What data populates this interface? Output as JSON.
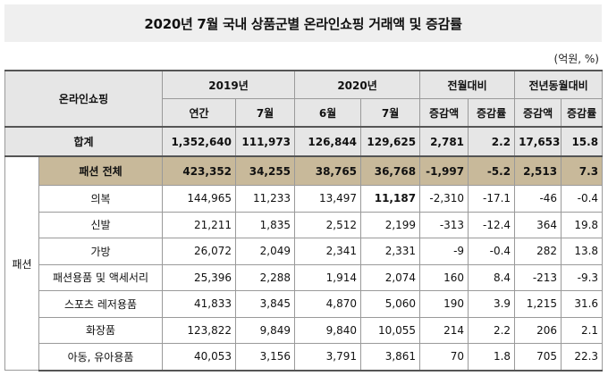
{
  "title": "2020년 7월 국내 상품군별 온라인쇼핑 거래액 및 증감률",
  "unit": "(억원, %)",
  "header": {
    "corner": "온라인쇼핑",
    "groups": [
      "2019년",
      "2020년",
      "전월대비",
      "전년동월대비"
    ],
    "subs": [
      "연간",
      "7월",
      "6월",
      "7월",
      "증감액",
      "증감률",
      "증감액",
      "증감률"
    ]
  },
  "total": {
    "label": "합계",
    "values": [
      "1,352,640",
      "111,973",
      "126,844",
      "129,625",
      "2,781",
      "2.2",
      "17,653",
      "15.8"
    ]
  },
  "fashion_group_label": "패션",
  "fashion_total": {
    "label": "패션 전체",
    "values": [
      "423,352",
      "34,255",
      "38,765",
      "36,768",
      "-1,997",
      "-5.2",
      "2,513",
      "7.3"
    ]
  },
  "rows": [
    {
      "label": "의복",
      "values": [
        "144,965",
        "11,233",
        "13,497",
        "11,187",
        "-2,310",
        "-17.1",
        "-46",
        "-0.4"
      ]
    },
    {
      "label": "신발",
      "values": [
        "21,211",
        "1,835",
        "2,512",
        "2,199",
        "-313",
        "-12.4",
        "364",
        "19.8"
      ]
    },
    {
      "label": "가방",
      "values": [
        "26,072",
        "2,049",
        "2,341",
        "2,331",
        "-9",
        "-0.4",
        "282",
        "13.8"
      ]
    },
    {
      "label": "패션용품 및 액세서리",
      "values": [
        "25,396",
        "2,288",
        "1,914",
        "2,074",
        "160",
        "8.4",
        "-213",
        "-9.3"
      ]
    },
    {
      "label": "스포츠 레저용품",
      "values": [
        "41,833",
        "3,845",
        "4,870",
        "5,060",
        "190",
        "3.9",
        "1,215",
        "31.6"
      ]
    },
    {
      "label": "화장품",
      "values": [
        "123,822",
        "9,849",
        "9,840",
        "10,055",
        "214",
        "2.2",
        "206",
        "2.1"
      ]
    },
    {
      "label": "아동, 유아용품",
      "values": [
        "40,053",
        "3,156",
        "3,791",
        "3,861",
        "70",
        "1.8",
        "705",
        "22.3"
      ]
    }
  ]
}
